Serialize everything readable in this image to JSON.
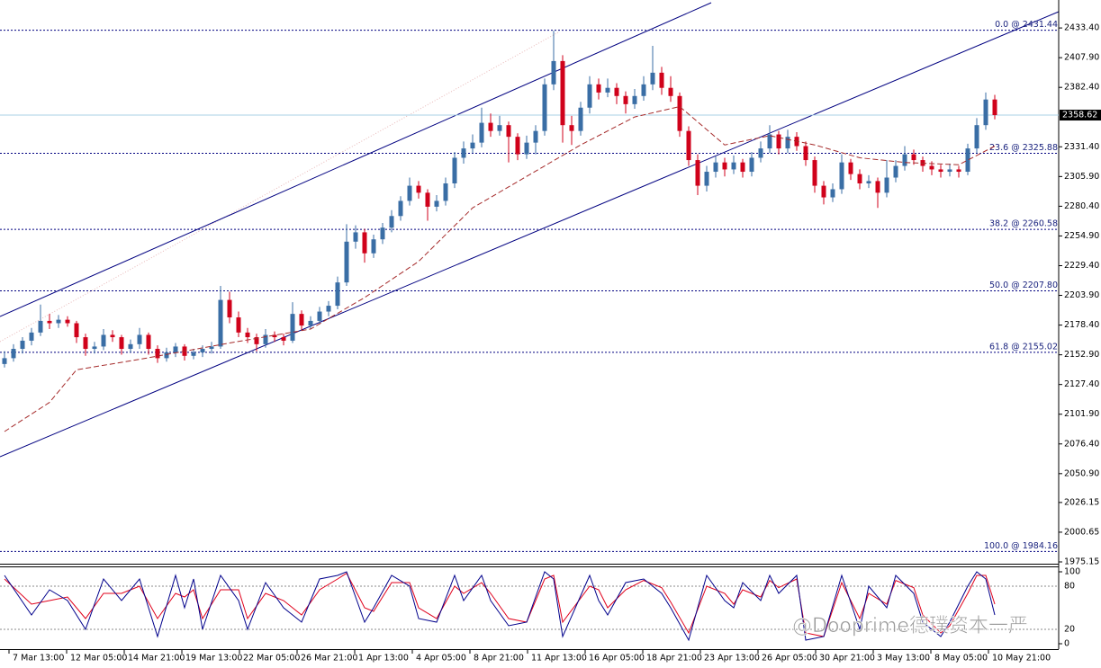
{
  "chart_data": {
    "type": "candlestick",
    "up_color": "#3a6ea5",
    "down_color": "#d0021b",
    "xlim": [
      -0.5,
      117.1
    ],
    "ylim": [
      1973.6,
      2457.4
    ],
    "yticks": [
      {
        "value": 2433.4,
        "label": "2433.40"
      },
      {
        "value": 2407.9,
        "label": "2407.90"
      },
      {
        "value": 2382.4,
        "label": "2382.40"
      },
      {
        "value": 2331.4,
        "label": "2331.40"
      },
      {
        "value": 2305.9,
        "label": "2305.90"
      },
      {
        "value": 2280.4,
        "label": "2280.40"
      },
      {
        "value": 2254.9,
        "label": "2254.90"
      },
      {
        "value": 2229.4,
        "label": "2229.40"
      },
      {
        "value": 2203.9,
        "label": "2203.90"
      },
      {
        "value": 2178.4,
        "label": "2178.40"
      },
      {
        "value": 2152.9,
        "label": "2152.90"
      },
      {
        "value": 2127.4,
        "label": "2127.40"
      },
      {
        "value": 2101.9,
        "label": "2101.90"
      },
      {
        "value": 2076.4,
        "label": "2076.40"
      },
      {
        "value": 2050.9,
        "label": "2050.90"
      },
      {
        "value": 2026.15,
        "label": "2026.15"
      },
      {
        "value": 2000.65,
        "label": "2000.65"
      },
      {
        "value": 1975.15,
        "label": "1975.15"
      }
    ],
    "xticks": [
      {
        "value": 0.5,
        "label": "7 Mar 13:00"
      },
      {
        "value": 6.9,
        "label": "12 Mar 05:00"
      },
      {
        "value": 13.3,
        "label": "14 Mar 21:00"
      },
      {
        "value": 19.7,
        "label": "19 Mar 13:00"
      },
      {
        "value": 26.1,
        "label": "22 Mar 05:00"
      },
      {
        "value": 32.5,
        "label": "26 Mar 21:00"
      },
      {
        "value": 38.9,
        "label": "1 Apr 13:00"
      },
      {
        "value": 45.3,
        "label": "4 Apr 05:00"
      },
      {
        "value": 51.7,
        "label": "8 Apr 21:00"
      },
      {
        "value": 58.1,
        "label": "11 Apr 13:00"
      },
      {
        "value": 64.5,
        "label": "16 Apr 05:00"
      },
      {
        "value": 70.9,
        "label": "18 Apr 21:00"
      },
      {
        "value": 77.3,
        "label": "23 Apr 13:00"
      },
      {
        "value": 83.7,
        "label": "26 Apr 05:00"
      },
      {
        "value": 90.1,
        "label": "30 Apr 21:00"
      },
      {
        "value": 96.5,
        "label": "3 May 13:00"
      },
      {
        "value": 102.9,
        "label": "8 May 05:00"
      },
      {
        "value": 109.3,
        "label": "10 May 21:00"
      }
    ],
    "current_price": {
      "value": 2358.62,
      "label": "2358.62"
    },
    "fib_levels": [
      {
        "value": 2431.44,
        "label": "0.0 @ 2431.44"
      },
      {
        "value": 2325.88,
        "label": "23.6 @ 2325.88"
      },
      {
        "value": 2260.58,
        "label": "38.2 @ 2260.58"
      },
      {
        "value": 2207.8,
        "label": "50.0 @ 2207.80"
      },
      {
        "value": 2155.02,
        "label": "61.8 @ 2155.02"
      },
      {
        "value": 1984.16,
        "label": "100.0 @ 1984.16"
      }
    ],
    "ohlc": [
      [
        2145,
        2156,
        2142,
        2150
      ],
      [
        2150,
        2162,
        2147,
        2158
      ],
      [
        2158,
        2168,
        2154,
        2165
      ],
      [
        2165,
        2176,
        2161,
        2172
      ],
      [
        2172,
        2196,
        2169,
        2182
      ],
      [
        2182,
        2188,
        2175,
        2180
      ],
      [
        2180,
        2187,
        2176,
        2183
      ],
      [
        2183,
        2186,
        2177,
        2180
      ],
      [
        2180,
        2182,
        2163,
        2168
      ],
      [
        2168,
        2171,
        2152,
        2158
      ],
      [
        2158,
        2164,
        2154,
        2160
      ],
      [
        2160,
        2175,
        2157,
        2170
      ],
      [
        2170,
        2174,
        2164,
        2168
      ],
      [
        2168,
        2170,
        2153,
        2158
      ],
      [
        2158,
        2166,
        2155,
        2162
      ],
      [
        2162,
        2176,
        2158,
        2170
      ],
      [
        2170,
        2172,
        2153,
        2158
      ],
      [
        2158,
        2161,
        2146,
        2150
      ],
      [
        2150,
        2159,
        2147,
        2155
      ],
      [
        2155,
        2163,
        2151,
        2160
      ],
      [
        2160,
        2162,
        2148,
        2152
      ],
      [
        2152,
        2158,
        2149,
        2155
      ],
      [
        2155,
        2161,
        2151,
        2158
      ],
      [
        2158,
        2164,
        2154,
        2160
      ],
      [
        2160,
        2212,
        2158,
        2200
      ],
      [
        2200,
        2207,
        2180,
        2185
      ],
      [
        2185,
        2190,
        2168,
        2172
      ],
      [
        2172,
        2176,
        2163,
        2168
      ],
      [
        2168,
        2171,
        2156,
        2162
      ],
      [
        2162,
        2175,
        2159,
        2170
      ],
      [
        2170,
        2173,
        2164,
        2168
      ],
      [
        2168,
        2171,
        2161,
        2165
      ],
      [
        2165,
        2198,
        2163,
        2188
      ],
      [
        2188,
        2191,
        2174,
        2178
      ],
      [
        2178,
        2186,
        2175,
        2182
      ],
      [
        2182,
        2194,
        2179,
        2190
      ],
      [
        2190,
        2199,
        2186,
        2195
      ],
      [
        2195,
        2220,
        2192,
        2215
      ],
      [
        2215,
        2265,
        2212,
        2250
      ],
      [
        2250,
        2264,
        2244,
        2258
      ],
      [
        2258,
        2261,
        2232,
        2240
      ],
      [
        2240,
        2256,
        2236,
        2252
      ],
      [
        2252,
        2266,
        2248,
        2262
      ],
      [
        2262,
        2277,
        2258,
        2272
      ],
      [
        2272,
        2289,
        2268,
        2285
      ],
      [
        2285,
        2305,
        2281,
        2298
      ],
      [
        2298,
        2302,
        2287,
        2292
      ],
      [
        2292,
        2295,
        2268,
        2280
      ],
      [
        2280,
        2290,
        2276,
        2285
      ],
      [
        2285,
        2305,
        2281,
        2300
      ],
      [
        2300,
        2327,
        2296,
        2322
      ],
      [
        2322,
        2336,
        2317,
        2330
      ],
      [
        2330,
        2342,
        2326,
        2335
      ],
      [
        2335,
        2365,
        2331,
        2352
      ],
      [
        2352,
        2360,
        2340,
        2345
      ],
      [
        2345,
        2358,
        2341,
        2350
      ],
      [
        2350,
        2353,
        2318,
        2340
      ],
      [
        2340,
        2343,
        2320,
        2325
      ],
      [
        2325,
        2341,
        2321,
        2335
      ],
      [
        2335,
        2350,
        2325,
        2345
      ],
      [
        2345,
        2390,
        2341,
        2385
      ],
      [
        2385,
        2431,
        2380,
        2405
      ],
      [
        2405,
        2410,
        2335,
        2350
      ],
      [
        2350,
        2358,
        2333,
        2345
      ],
      [
        2345,
        2370,
        2341,
        2365
      ],
      [
        2365,
        2392,
        2360,
        2385
      ],
      [
        2385,
        2390,
        2372,
        2378
      ],
      [
        2378,
        2390,
        2374,
        2382
      ],
      [
        2382,
        2386,
        2368,
        2375
      ],
      [
        2375,
        2379,
        2360,
        2368
      ],
      [
        2368,
        2381,
        2364,
        2375
      ],
      [
        2375,
        2392,
        2371,
        2385
      ],
      [
        2385,
        2418,
        2380,
        2395
      ],
      [
        2395,
        2400,
        2376,
        2382
      ],
      [
        2382,
        2392,
        2370,
        2375
      ],
      [
        2375,
        2378,
        2340,
        2345
      ],
      [
        2345,
        2349,
        2315,
        2320
      ],
      [
        2320,
        2325,
        2290,
        2298
      ],
      [
        2298,
        2315,
        2293,
        2310
      ],
      [
        2310,
        2323,
        2305,
        2318
      ],
      [
        2318,
        2322,
        2306,
        2312
      ],
      [
        2312,
        2324,
        2308,
        2318
      ],
      [
        2318,
        2321,
        2305,
        2310
      ],
      [
        2310,
        2327,
        2306,
        2322
      ],
      [
        2322,
        2336,
        2318,
        2330
      ],
      [
        2330,
        2350,
        2326,
        2342
      ],
      [
        2342,
        2345,
        2325,
        2330
      ],
      [
        2330,
        2346,
        2326,
        2340
      ],
      [
        2340,
        2344,
        2328,
        2332
      ],
      [
        2332,
        2336,
        2315,
        2320
      ],
      [
        2320,
        2323,
        2292,
        2298
      ],
      [
        2298,
        2302,
        2282,
        2288
      ],
      [
        2288,
        2300,
        2284,
        2295
      ],
      [
        2295,
        2325,
        2291,
        2318
      ],
      [
        2318,
        2321,
        2303,
        2308
      ],
      [
        2308,
        2312,
        2295,
        2300
      ],
      [
        2300,
        2307,
        2296,
        2302
      ],
      [
        2302,
        2305,
        2279,
        2292
      ],
      [
        2292,
        2320,
        2288,
        2305
      ],
      [
        2305,
        2320,
        2301,
        2315
      ],
      [
        2315,
        2332,
        2311,
        2325
      ],
      [
        2325,
        2329,
        2316,
        2320
      ],
      [
        2320,
        2323,
        2310,
        2315
      ],
      [
        2315,
        2319,
        2307,
        2312
      ],
      [
        2312,
        2316,
        2305,
        2310
      ],
      [
        2310,
        2317,
        2306,
        2312
      ],
      [
        2312,
        2315,
        2305,
        2310
      ],
      [
        2310,
        2334,
        2307,
        2330
      ],
      [
        2330,
        2356,
        2326,
        2350
      ],
      [
        2350,
        2378,
        2346,
        2372
      ],
      [
        2372,
        2376,
        2355,
        2358.62
      ]
    ],
    "moving_average": {
      "color": "#a52a2a",
      "x": [
        0,
        5,
        8,
        15,
        25,
        34,
        40,
        46,
        52,
        58,
        64,
        70,
        75,
        80,
        85,
        90,
        95,
        100,
        106,
        110
      ],
      "values": [
        2087,
        2112,
        2140,
        2149,
        2163,
        2175,
        2202,
        2233,
        2279,
        2306,
        2333,
        2357,
        2366,
        2333,
        2341,
        2333,
        2322,
        2318,
        2316,
        2332
      ]
    },
    "stochastic": {
      "ylim": [
        0,
        100
      ],
      "yticks": [
        100,
        80,
        20,
        0
      ],
      "x": [
        0,
        3,
        5,
        7,
        9,
        11,
        13,
        15,
        17,
        19,
        20,
        21,
        22,
        24,
        26,
        27,
        29,
        31,
        33,
        35,
        37,
        38,
        40,
        41,
        43,
        45,
        46,
        48,
        50,
        51,
        53,
        54,
        56,
        58,
        60,
        61,
        62,
        65,
        66,
        67,
        69,
        71,
        73,
        74,
        76,
        78,
        80,
        81,
        82,
        84,
        85,
        86,
        88,
        89,
        91,
        93,
        95,
        96,
        98,
        99,
        101,
        102,
        104,
        105,
        107,
        108,
        109,
        110
      ],
      "series": [
        {
          "color": "#00008b",
          "values": [
            95,
            40,
            75,
            60,
            20,
            90,
            60,
            90,
            10,
            95,
            50,
            90,
            20,
            95,
            60,
            20,
            85,
            50,
            30,
            90,
            95,
            100,
            30,
            50,
            95,
            80,
            35,
            30,
            95,
            60,
            95,
            60,
            25,
            30,
            100,
            90,
            10,
            95,
            60,
            40,
            85,
            90,
            70,
            50,
            5,
            95,
            60,
            50,
            85,
            60,
            95,
            70,
            95,
            5,
            10,
            95,
            20,
            80,
            50,
            95,
            70,
            30,
            10,
            30,
            80,
            100,
            90,
            40
          ]
        },
        {
          "color": "#e0001b",
          "values": [
            90,
            55,
            60,
            65,
            35,
            70,
            70,
            80,
            35,
            70,
            65,
            75,
            35,
            75,
            75,
            35,
            70,
            60,
            40,
            75,
            90,
            98,
            50,
            45,
            85,
            85,
            50,
            35,
            80,
            70,
            85,
            70,
            35,
            30,
            90,
            95,
            30,
            80,
            75,
            50,
            75,
            88,
            78,
            58,
            15,
            80,
            70,
            55,
            75,
            65,
            88,
            78,
            90,
            15,
            10,
            85,
            35,
            70,
            55,
            88,
            78,
            40,
            15,
            25,
            70,
            95,
            95,
            55
          ]
        }
      ]
    },
    "watermark": "@Dooprime德璞资本一严"
  }
}
